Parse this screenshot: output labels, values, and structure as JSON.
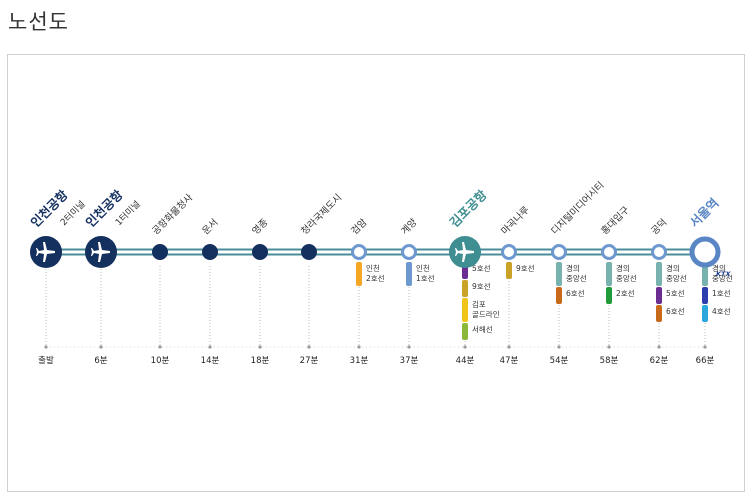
{
  "page": {
    "title": "노선도"
  },
  "colors": {
    "rail": "#4a8c9b",
    "navy": "#14305f",
    "teal_station": "#3f8e92",
    "seoul_ring": "#5b86c6",
    "gray_text": "#444444"
  },
  "stations": [
    {
      "name": "인천공항",
      "sub": "2터미널",
      "time": "출발",
      "type": "airport-navy",
      "name_color": "#14305f",
      "transfers": []
    },
    {
      "name": "인천공항",
      "sub": "1터미널",
      "time": "6분",
      "type": "airport-navy",
      "name_color": "#14305f",
      "transfers": []
    },
    {
      "name": "공항화물청사",
      "sub": "",
      "time": "10분",
      "type": "navy",
      "name_color": "#333333",
      "transfers": []
    },
    {
      "name": "운서",
      "sub": "",
      "time": "14분",
      "type": "navy",
      "name_color": "#333333",
      "transfers": []
    },
    {
      "name": "영종",
      "sub": "",
      "time": "18분",
      "type": "navy",
      "name_color": "#333333",
      "transfers": []
    },
    {
      "name": "청라국제도시",
      "sub": "",
      "time": "27분",
      "type": "navy",
      "name_color": "#333333",
      "transfers": []
    },
    {
      "name": "검암",
      "sub": "",
      "time": "31분",
      "type": "ring",
      "name_color": "#333333",
      "transfers": [
        {
          "label": "인천\n2호선",
          "color": "#f5a623"
        }
      ]
    },
    {
      "name": "계양",
      "sub": "",
      "time": "37분",
      "type": "ring",
      "name_color": "#333333",
      "transfers": [
        {
          "label": "인천\n1호선",
          "color": "#6e98d0"
        }
      ]
    },
    {
      "name": "김포공항",
      "sub": "",
      "time": "44분",
      "type": "airport-teal",
      "name_color": "#3f8e92",
      "transfers": [
        {
          "label": "5호선",
          "color": "#6b2d91"
        },
        {
          "label": "9호선",
          "color": "#c9a227"
        },
        {
          "label": "김포\n골드라인",
          "color": "#f0c419"
        },
        {
          "label": "서해선",
          "color": "#8db93b"
        }
      ]
    },
    {
      "name": "마곡나루",
      "sub": "",
      "time": "47분",
      "type": "ring",
      "name_color": "#333333",
      "transfers": [
        {
          "label": "9호선",
          "color": "#c9a227"
        }
      ]
    },
    {
      "name": "디지털미디어시티",
      "sub": "",
      "time": "54분",
      "type": "ring",
      "name_color": "#333333",
      "transfers": [
        {
          "label": "경의\n중앙선",
          "color": "#77b2ae"
        },
        {
          "label": "6호선",
          "color": "#c96a1b"
        }
      ]
    },
    {
      "name": "홍대입구",
      "sub": "",
      "time": "58분",
      "type": "ring",
      "name_color": "#333333",
      "transfers": [
        {
          "label": "경의\n중앙선",
          "color": "#77b2ae"
        },
        {
          "label": "2호선",
          "color": "#1f9b3c"
        }
      ]
    },
    {
      "name": "공덕",
      "sub": "",
      "time": "62분",
      "type": "ring",
      "name_color": "#333333",
      "transfers": [
        {
          "label": "경의\n중앙선",
          "color": "#77b2ae"
        },
        {
          "label": "5호선",
          "color": "#6b2d91"
        },
        {
          "label": "6호선",
          "color": "#c96a1b"
        }
      ]
    },
    {
      "name": "서울역",
      "sub": "",
      "time": "66분",
      "type": "seoul",
      "name_color": "#5b86c6",
      "badge": "KTX",
      "transfers": [
        {
          "label": "경의\n중앙선",
          "color": "#77b2ae"
        },
        {
          "label": "1호선",
          "color": "#2d3fae"
        },
        {
          "label": "4호선",
          "color": "#2aa7dd"
        }
      ]
    }
  ]
}
